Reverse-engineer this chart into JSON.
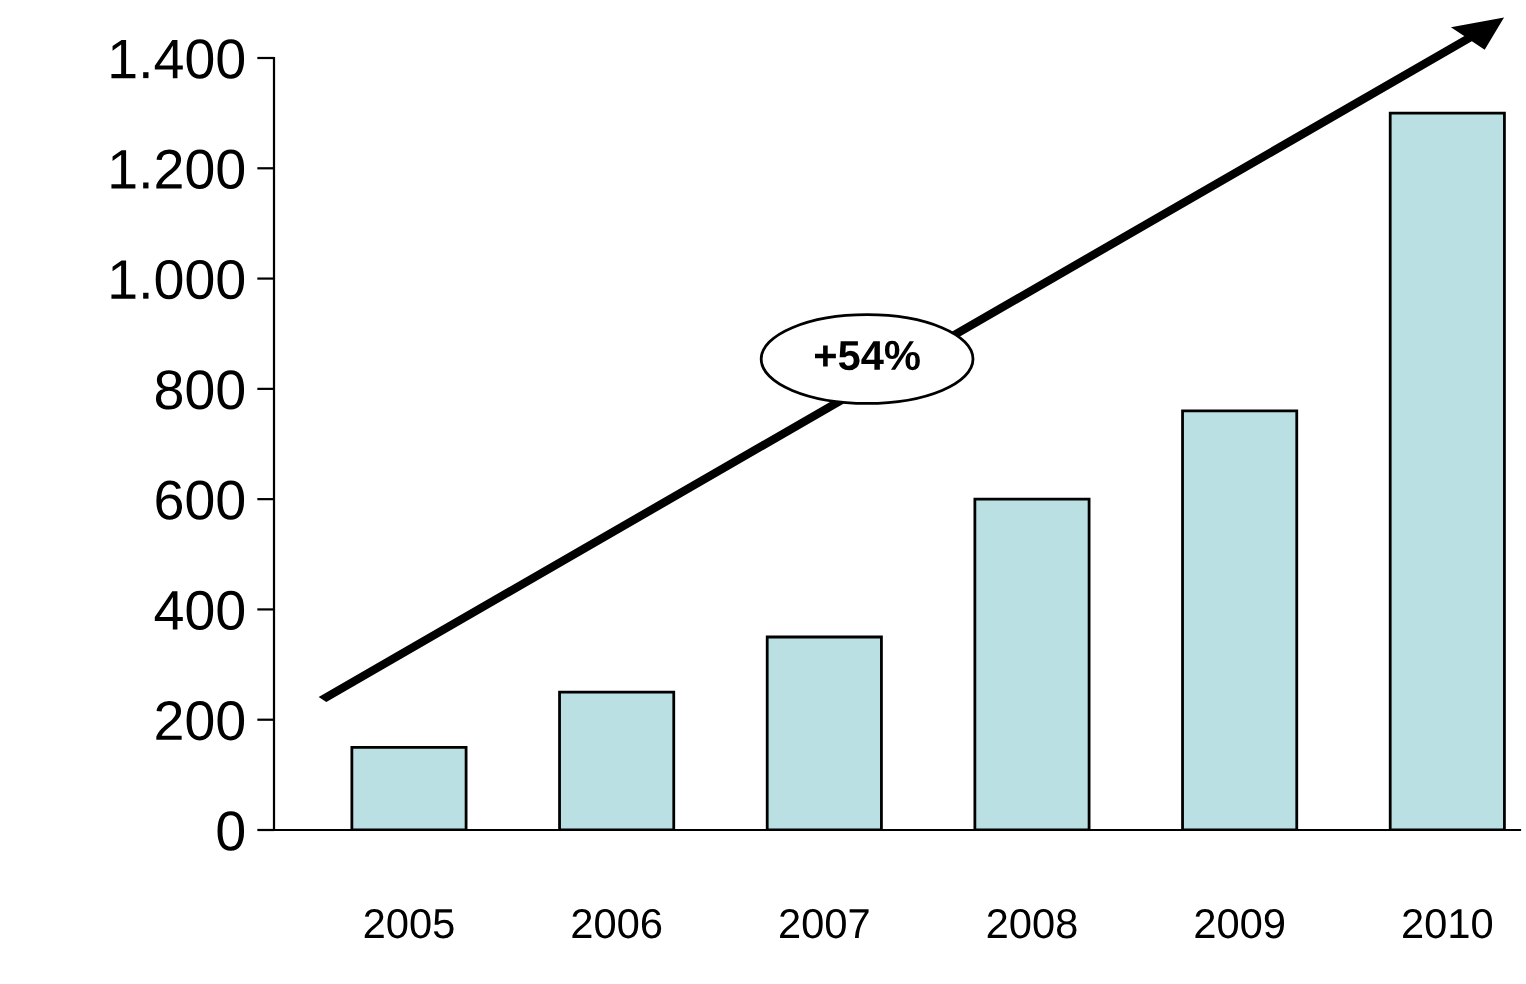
{
  "chart_data": {
    "type": "bar",
    "categories": [
      "2005",
      "2006",
      "2007",
      "2008",
      "2009",
      "2010"
    ],
    "values": [
      150,
      250,
      350,
      600,
      760,
      1300
    ],
    "color": "#bae0e3",
    "ylim": [
      0,
      1400
    ],
    "yticks": [
      0,
      200,
      400,
      600,
      800,
      {
        "value": 1000,
        "label": "1.000"
      },
      {
        "value": 1200,
        "label": "1.200"
      },
      {
        "value": 1400,
        "label": "1.400"
      }
    ],
    "grid": false,
    "annotations": [
      "+54%"
    ]
  }
}
